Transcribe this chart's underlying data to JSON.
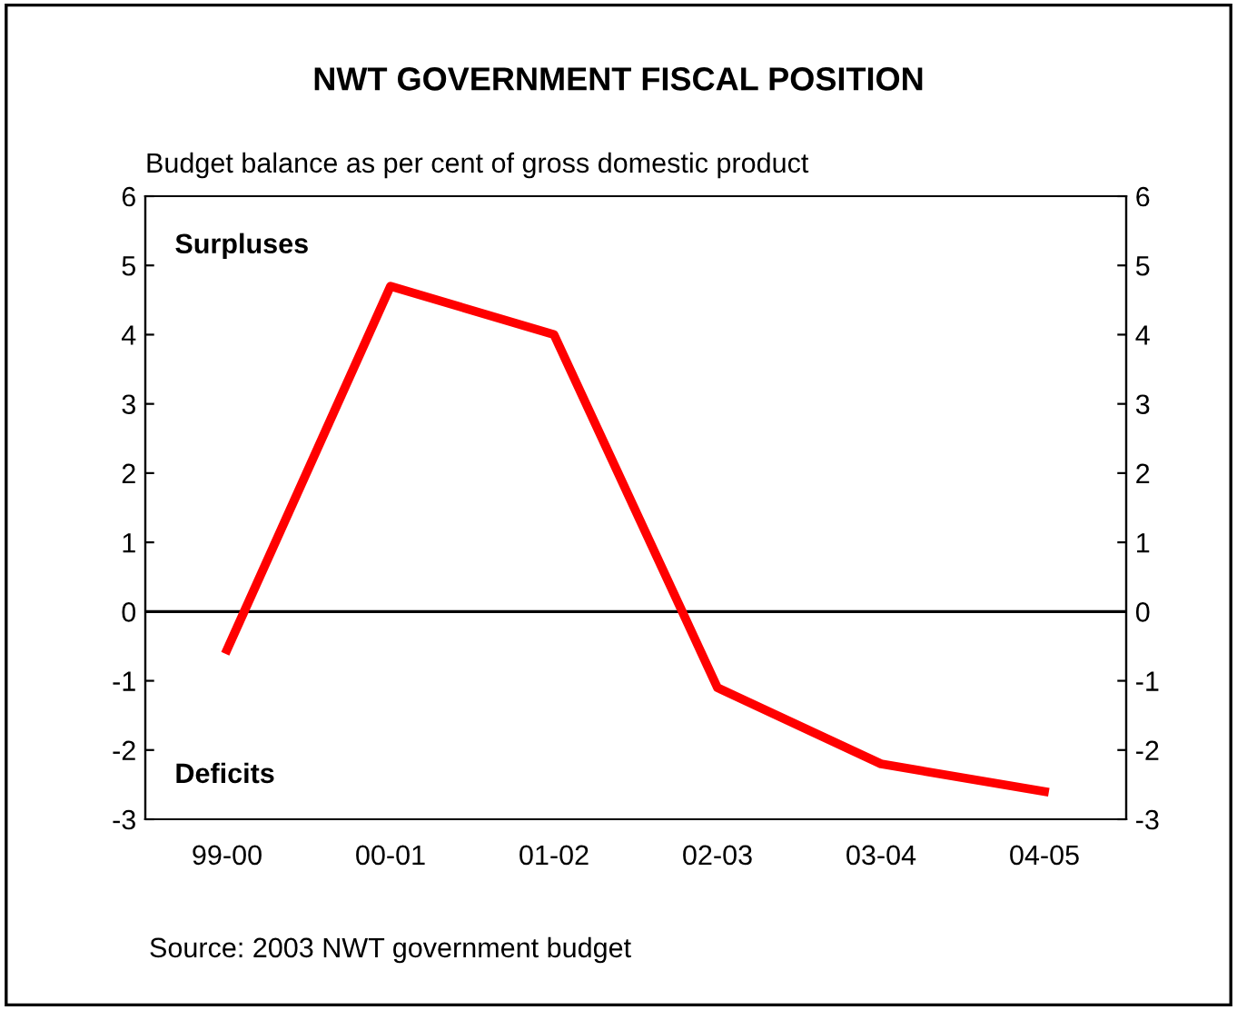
{
  "chart_data": {
    "type": "line",
    "title": "NWT GOVERNMENT FISCAL POSITION",
    "subtitle": "Budget balance as per cent of gross domestic product",
    "categories": [
      "99-00",
      "00-01",
      "01-02",
      "02-03",
      "03-04",
      "04-05"
    ],
    "series": [
      {
        "color": "#ff0000",
        "values": [
          -0.55,
          4.7,
          4.0,
          -1.1,
          -2.2,
          -2.6
        ]
      }
    ],
    "ylim": [
      -3,
      6
    ],
    "yticks": [
      -3,
      -2,
      -1,
      0,
      1,
      2,
      3,
      4,
      5,
      6
    ],
    "y2lim": [
      -3,
      6
    ],
    "y2ticks": [
      -3,
      -2,
      -1,
      0,
      1,
      2,
      3,
      4,
      5,
      6
    ],
    "ref_lines": [
      {
        "axis": "y",
        "value": 0,
        "color": "#000000"
      }
    ],
    "annotations": [
      "Surpluses",
      "Deficits",
      "Source: 2003 NWT government budget"
    ],
    "grid": false,
    "marker": "none",
    "line_style": "solid"
  }
}
